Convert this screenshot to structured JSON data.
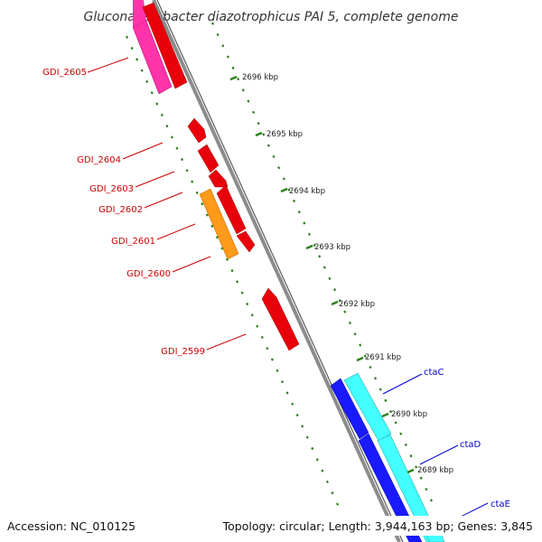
{
  "title": "Gluconacetobacter diazotrophicus PAI 5, complete genome",
  "footer": {
    "accession": "Accession: NC_010125",
    "summary": "Topology: circular; Length: 3,944,163 bp; Genes: 3,845"
  },
  "scale_labels": [
    "2696 kbp",
    "2695 kbp",
    "2694 kbp",
    "2693 kbp",
    "2692 kbp",
    "2691 kbp",
    "2690 kbp",
    "2689 kbp"
  ],
  "colors": {
    "backbone": "#8c8c8c",
    "tick": "#2a7f1a",
    "red_gene": "#e8000b",
    "pink_gene": "#ff33aa",
    "orange_gene": "#ff9a1a",
    "blue_gene": "#1a1aff",
    "cyan_gene": "#44ffff",
    "red_label": "#cc0000",
    "blue_label": "#0000cc"
  },
  "gene_labels": {
    "left": [
      "GDI_2605",
      "GDI_2604",
      "GDI_2603",
      "GDI_2602",
      "GDI_2601",
      "GDI_2600",
      "GDI_2599"
    ],
    "right": [
      "ctaC",
      "ctaD",
      "ctaE"
    ]
  }
}
